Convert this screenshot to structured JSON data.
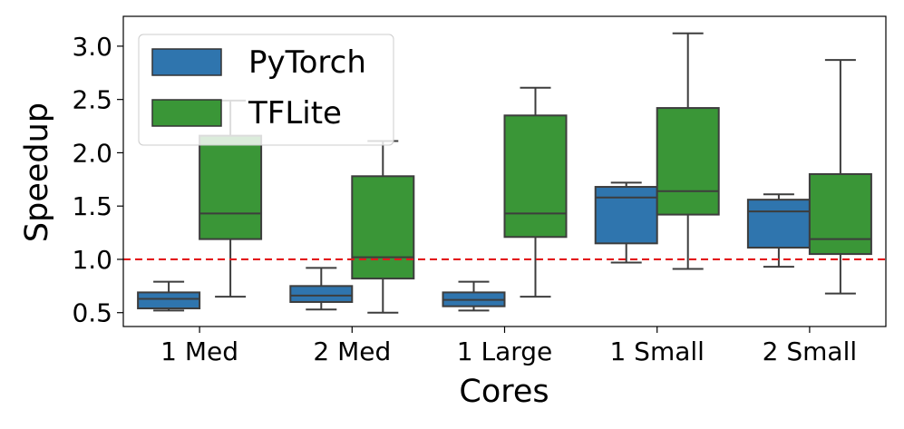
{
  "chart_data": {
    "type": "box",
    "title": "",
    "xlabel": "Cores",
    "ylabel": "Speedup",
    "ylim": [
      0.37,
      3.28
    ],
    "yticks": [
      0.5,
      1.0,
      1.5,
      2.0,
      2.5,
      3.0
    ],
    "ytick_labels": [
      "0.5",
      "1.0",
      "1.5",
      "2.0",
      "2.5",
      "3.0"
    ],
    "categories": [
      "1 Med",
      "2 Med",
      "1 Large",
      "1 Small",
      "2 Small"
    ],
    "reference_line": {
      "value": 1.0,
      "color": "#e31a1c",
      "style": "dashed"
    },
    "legend": {
      "position": "top-left"
    },
    "series": [
      {
        "name": "PyTorch",
        "color": "#2f75ae",
        "boxes": [
          {
            "whisker_low": 0.52,
            "q1": 0.54,
            "median": 0.63,
            "q3": 0.69,
            "whisker_high": 0.79
          },
          {
            "whisker_low": 0.53,
            "q1": 0.6,
            "median": 0.66,
            "q3": 0.75,
            "whisker_high": 0.92
          },
          {
            "whisker_low": 0.52,
            "q1": 0.56,
            "median": 0.62,
            "q3": 0.69,
            "whisker_high": 0.79
          },
          {
            "whisker_low": 0.97,
            "q1": 1.15,
            "median": 1.58,
            "q3": 1.68,
            "whisker_high": 1.72
          },
          {
            "whisker_low": 0.93,
            "q1": 1.11,
            "median": 1.45,
            "q3": 1.56,
            "whisker_high": 1.61
          }
        ]
      },
      {
        "name": "TFLite",
        "color": "#3a9637",
        "boxes": [
          {
            "whisker_low": 0.65,
            "q1": 1.19,
            "median": 1.43,
            "q3": 2.16,
            "whisker_high": 2.49
          },
          {
            "whisker_low": 0.5,
            "q1": 0.82,
            "median": 1.02,
            "q3": 1.78,
            "whisker_high": 2.11
          },
          {
            "whisker_low": 0.65,
            "q1": 1.21,
            "median": 1.43,
            "q3": 2.35,
            "whisker_high": 2.61
          },
          {
            "whisker_low": 0.91,
            "q1": 1.42,
            "median": 1.64,
            "q3": 2.42,
            "whisker_high": 3.12
          },
          {
            "whisker_low": 0.68,
            "q1": 1.05,
            "median": 1.19,
            "q3": 1.8,
            "whisker_high": 2.87
          }
        ]
      }
    ]
  }
}
